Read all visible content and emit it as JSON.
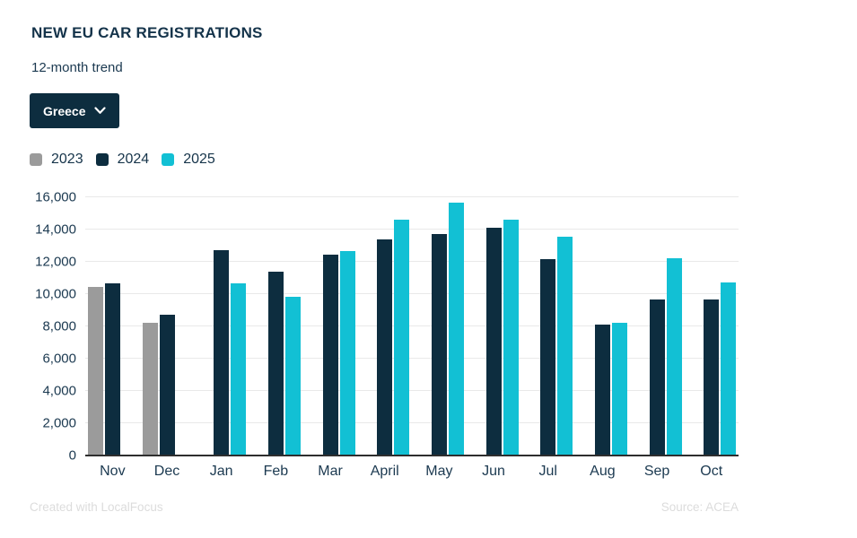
{
  "header": {
    "title": "NEW EU CAR REGISTRATIONS",
    "subtitle": "12-month trend",
    "country_selector": {
      "value": "Greece",
      "icon": "chevron-down-icon"
    }
  },
  "legend": [
    {
      "label": "2023",
      "color": "#9b9b9b"
    },
    {
      "label": "2024",
      "color": "#0d2d3f"
    },
    {
      "label": "2025",
      "color": "#12c0d4"
    }
  ],
  "chart_data": {
    "type": "bar",
    "title": "NEW EU CAR REGISTRATIONS",
    "subtitle": "12-month trend",
    "categories": [
      "Nov",
      "Dec",
      "Jan",
      "Feb",
      "Mar",
      "April",
      "May",
      "Jun",
      "Jul",
      "Aug",
      "Sep",
      "Oct"
    ],
    "series": [
      {
        "name": "2023",
        "color": "#9b9b9b",
        "values": [
          10450,
          8200,
          null,
          null,
          null,
          null,
          null,
          null,
          null,
          null,
          null,
          null
        ]
      },
      {
        "name": "2024",
        "color": "#0d2d3f",
        "values": [
          10650,
          8700,
          12700,
          11400,
          12450,
          13400,
          13700,
          14100,
          12150,
          8100,
          9650,
          9650
        ]
      },
      {
        "name": "2025",
        "color": "#12c0d4",
        "values": [
          null,
          null,
          10650,
          9850,
          12650,
          14600,
          15650,
          14600,
          13550,
          8200,
          12250,
          10750
        ]
      }
    ],
    "xlabel": "",
    "ylabel": "",
    "ylim": [
      0,
      16000
    ],
    "ytick_step": 2000,
    "yticks": [
      "0",
      "2,000",
      "4,000",
      "6,000",
      "8,000",
      "10,000",
      "12,000",
      "14,000",
      "16,000"
    ],
    "grid": true,
    "legend_position": "top-left"
  },
  "footer": {
    "created": "Created with LocalFocus",
    "source": "Source: ACEA"
  }
}
